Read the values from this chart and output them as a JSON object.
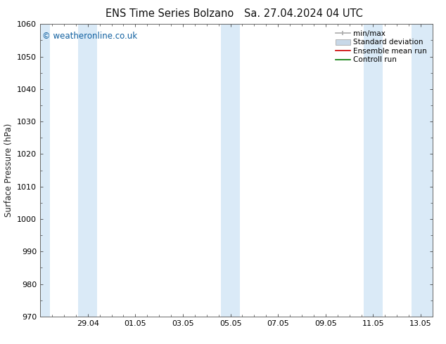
{
  "title1": "ENS Time Series Bolzano",
  "title2": "Sa. 27.04.2024 04 UTC",
  "ylabel": "Surface Pressure (hPa)",
  "ylim": [
    970,
    1060
  ],
  "yticks": [
    970,
    980,
    990,
    1000,
    1010,
    1020,
    1030,
    1040,
    1050,
    1060
  ],
  "xlim": [
    0.0,
    16.5
  ],
  "xtick_labels": [
    "29.04",
    "01.05",
    "03.05",
    "05.05",
    "07.05",
    "09.05",
    "11.05",
    "13.05"
  ],
  "xtick_positions": [
    2.0,
    4.0,
    6.0,
    8.0,
    10.0,
    12.0,
    14.0,
    16.0
  ],
  "watermark": "© weatheronline.co.uk",
  "background_color": "#ffffff",
  "plot_bg_color": "#ffffff",
  "shaded_bands": [
    {
      "start": 0.0,
      "end": 0.4
    },
    {
      "start": 1.6,
      "end": 2.4
    },
    {
      "start": 7.6,
      "end": 8.0
    },
    {
      "start": 8.0,
      "end": 8.4
    },
    {
      "start": 13.6,
      "end": 14.4
    },
    {
      "start": 15.6,
      "end": 16.5
    }
  ],
  "band_color": "#daeaf7",
  "title_fontsize": 10.5,
  "axis_label_fontsize": 8.5,
  "tick_fontsize": 8,
  "watermark_fontsize": 8.5,
  "watermark_color": "#1060a0",
  "legend_fontsize": 7.5,
  "spine_color": "#666666",
  "tick_color": "#444444"
}
